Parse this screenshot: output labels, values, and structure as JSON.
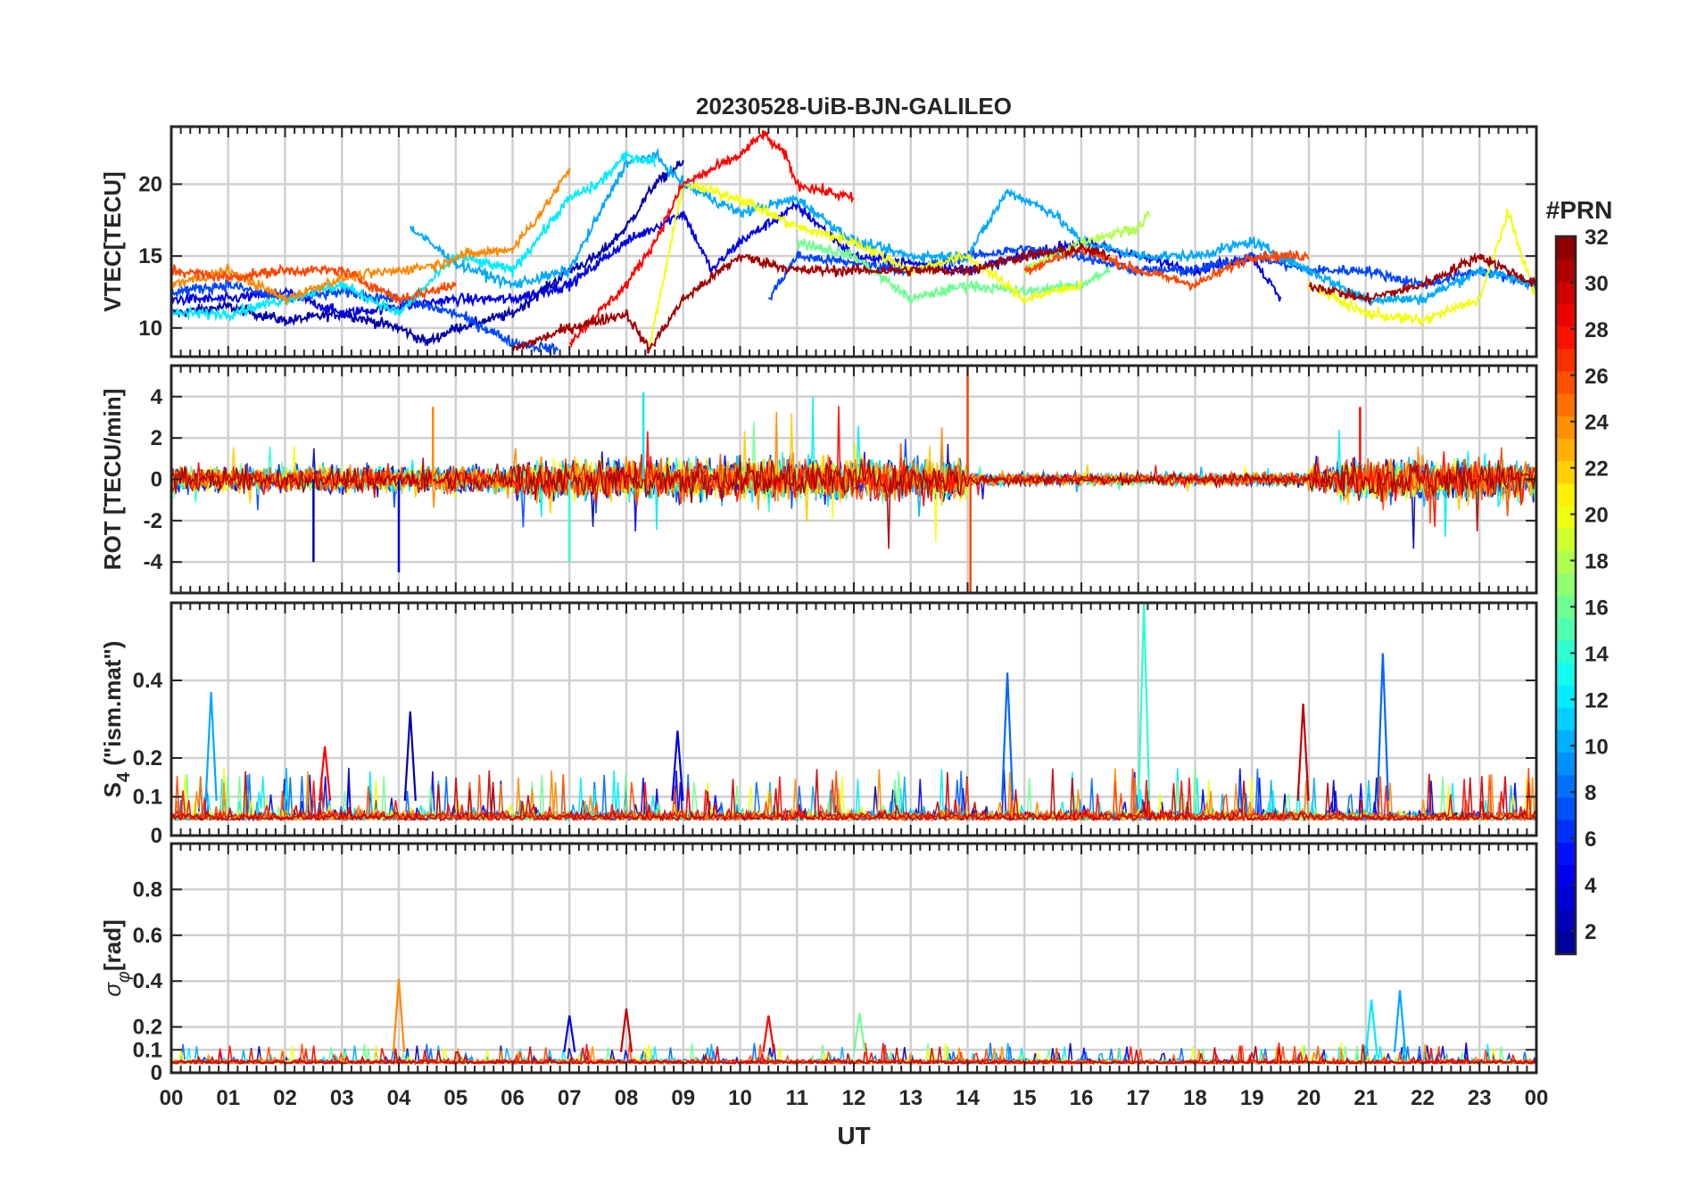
{
  "chart_data": {
    "type": "line",
    "title": "20230528-UiB-BJN-GALILEO",
    "xlabel": "UT",
    "x_ticks": [
      "00",
      "01",
      "02",
      "03",
      "04",
      "05",
      "06",
      "07",
      "08",
      "09",
      "10",
      "11",
      "12",
      "13",
      "14",
      "15",
      "16",
      "17",
      "18",
      "19",
      "20",
      "21",
      "22",
      "23",
      "00"
    ],
    "xlim_hours": [
      0,
      24
    ],
    "grid": true,
    "colorbar": {
      "title": "#PRN",
      "range": [
        1,
        32
      ],
      "ticks": [
        "2",
        "4",
        "6",
        "8",
        "10",
        "12",
        "14",
        "16",
        "18",
        "20",
        "22",
        "24",
        "26",
        "28",
        "30",
        "32"
      ],
      "colormap": [
        "#00008f",
        "#0000ff",
        "#0080ff",
        "#00ffff",
        "#80ff80",
        "#ffff00",
        "#ff8000",
        "#ff0000",
        "#800000"
      ]
    },
    "panels": [
      {
        "id": "vtec",
        "ylabel": "VTEC[TECU]",
        "ylim": [
          8,
          24
        ],
        "yticks": [
          10,
          15,
          20
        ],
        "ytick_labels": [
          "10",
          "15",
          "20"
        ],
        "series": [
          {
            "prn": 2,
            "points": [
              [
                0,
                11
              ],
              [
                1,
                11.5
              ],
              [
                2,
                10.5
              ],
              [
                3,
                11
              ],
              [
                4,
                10
              ],
              [
                4.5,
                9
              ],
              [
                5,
                10
              ],
              [
                6,
                11
              ],
              [
                7,
                14
              ],
              [
                7.5,
                15
              ],
              [
                8,
                17
              ],
              [
                8.5,
                20
              ],
              [
                9,
                21.5
              ]
            ]
          },
          {
            "prn": 4,
            "points": [
              [
                0,
                12
              ],
              [
                1,
                12
              ],
              [
                2,
                12.5
              ],
              [
                3,
                11
              ],
              [
                4,
                11.5
              ],
              [
                5,
                12
              ],
              [
                6,
                12
              ],
              [
                7,
                13
              ],
              [
                8,
                16
              ],
              [
                9,
                18
              ],
              [
                9.5,
                14
              ],
              [
                10,
                16
              ],
              [
                11,
                18.5
              ],
              [
                12,
                15
              ],
              [
                13,
                14.5
              ],
              [
                14,
                14
              ],
              [
                15,
                15
              ],
              [
                16,
                16
              ],
              [
                17,
                15
              ],
              [
                18,
                14
              ],
              [
                19,
                15
              ],
              [
                19.5,
                12
              ]
            ]
          },
          {
            "prn": 7,
            "points": [
              [
                0,
                12.5
              ],
              [
                1,
                13
              ],
              [
                2,
                12
              ],
              [
                3,
                12.5
              ],
              [
                4,
                12
              ],
              [
                5,
                11
              ],
              [
                6,
                9
              ],
              [
                6.8,
                8.5
              ],
              [
                10.5,
                12
              ],
              [
                11,
                15
              ],
              [
                12,
                14.5
              ],
              [
                13,
                14
              ],
              [
                14,
                15
              ],
              [
                15,
                15.5
              ],
              [
                16,
                15
              ],
              [
                17,
                14
              ],
              [
                18,
                14
              ],
              [
                19,
                15
              ],
              [
                20,
                14
              ],
              [
                21,
                14
              ],
              [
                22,
                13
              ],
              [
                23,
                14
              ],
              [
                24,
                13
              ]
            ]
          },
          {
            "prn": 10,
            "points": [
              [
                4.2,
                17
              ],
              [
                5,
                14.5
              ],
              [
                6,
                13
              ],
              [
                7,
                14
              ],
              [
                8,
                21.5
              ],
              [
                8.5,
                22
              ],
              [
                9,
                20
              ],
              [
                10,
                18
              ],
              [
                11,
                19
              ],
              [
                12,
                16
              ],
              [
                13,
                15
              ],
              [
                14,
                15
              ],
              [
                14.7,
                19.5
              ],
              [
                15.5,
                18
              ],
              [
                16,
                16
              ],
              [
                17,
                15
              ],
              [
                18,
                15
              ],
              [
                19,
                16
              ],
              [
                20,
                14
              ],
              [
                21,
                12
              ],
              [
                22,
                12
              ],
              [
                23,
                14
              ],
              [
                24,
                13
              ]
            ]
          },
          {
            "prn": 12,
            "points": [
              [
                0,
                11
              ],
              [
                1,
                11
              ],
              [
                2,
                12
              ],
              [
                3,
                13
              ],
              [
                4,
                11
              ],
              [
                5,
                15
              ],
              [
                6,
                14
              ],
              [
                7,
                19
              ],
              [
                7.5,
                20
              ],
              [
                8,
                22
              ],
              [
                8.5,
                21.5
              ]
            ]
          },
          {
            "prn": 16,
            "points": [
              [
                11,
                16
              ],
              [
                12,
                15
              ],
              [
                13,
                12
              ],
              [
                14,
                13
              ],
              [
                15,
                12.5
              ],
              [
                16,
                13
              ],
              [
                16.5,
                14
              ]
            ]
          },
          {
            "prn": 18,
            "points": [
              [
                15,
                14
              ],
              [
                16,
                16
              ],
              [
                17,
                17
              ],
              [
                17.2,
                18
              ]
            ]
          },
          {
            "prn": 20,
            "points": [
              [
                8.4,
                8.5
              ],
              [
                9,
                20
              ],
              [
                10,
                19
              ],
              [
                11,
                17
              ],
              [
                12,
                16
              ],
              [
                13,
                14
              ],
              [
                14,
                15
              ],
              [
                15,
                12
              ],
              [
                16,
                13
              ],
              [
                20,
                13
              ],
              [
                21,
                11
              ],
              [
                22,
                10.5
              ],
              [
                23,
                12
              ],
              [
                23.5,
                18
              ],
              [
                24,
                12
              ]
            ]
          },
          {
            "prn": 24,
            "points": [
              [
                0,
                13
              ],
              [
                1,
                14
              ],
              [
                2,
                12
              ],
              [
                3,
                13.5
              ],
              [
                4,
                14
              ],
              [
                4.8,
                14.5
              ],
              [
                5,
                15
              ],
              [
                6,
                15.5
              ],
              [
                6.5,
                18
              ],
              [
                7,
                21
              ]
            ]
          },
          {
            "prn": 26,
            "points": [
              [
                0,
                14
              ],
              [
                1,
                13.5
              ],
              [
                2,
                14
              ],
              [
                3,
                14
              ],
              [
                4,
                12
              ],
              [
                5,
                13
              ],
              [
                15,
                14
              ],
              [
                16,
                15.5
              ],
              [
                17,
                14
              ],
              [
                18,
                13
              ],
              [
                19,
                15
              ],
              [
                20,
                15
              ]
            ]
          },
          {
            "prn": 28,
            "points": [
              [
                7,
                9
              ],
              [
                7.5,
                11
              ],
              [
                8,
                13
              ],
              [
                8.5,
                16
              ],
              [
                9,
                20
              ],
              [
                9.5,
                21
              ],
              [
                10,
                22
              ],
              [
                10.4,
                23.5
              ],
              [
                10.8,
                22
              ],
              [
                11,
                20
              ],
              [
                12,
                19
              ]
            ]
          },
          {
            "prn": 31,
            "points": [
              [
                6,
                8.5
              ],
              [
                7,
                10
              ],
              [
                8,
                11
              ],
              [
                8.4,
                8.5
              ],
              [
                9,
                12
              ],
              [
                10,
                15
              ],
              [
                11,
                14
              ],
              [
                14,
                14
              ],
              [
                15,
                15
              ],
              [
                16,
                15.5
              ],
              [
                16.5,
                15
              ],
              [
                20,
                13
              ],
              [
                21,
                12
              ],
              [
                22,
                13
              ],
              [
                23,
                15
              ],
              [
                23.5,
                14
              ],
              [
                24,
                13
              ]
            ]
          }
        ]
      },
      {
        "id": "rot",
        "ylabel": "ROT [TECU/min]",
        "ylim": [
          -5.5,
          5.5
        ],
        "yticks": [
          -4,
          -2,
          0,
          2,
          4
        ],
        "ytick_labels": [
          "-4",
          "-2",
          "0",
          "2",
          "4"
        ],
        "spikes": [
          {
            "prn": 4,
            "hour": 4.0,
            "value": -4.5
          },
          {
            "prn": 12,
            "hour": 8.3,
            "value": 4.2
          },
          {
            "prn": 14,
            "hour": 7.0,
            "value": -4.0
          },
          {
            "prn": 2,
            "hour": 2.5,
            "value": -4.0
          },
          {
            "prn": 26,
            "hour": 14.0,
            "value": 5.5
          },
          {
            "prn": 26,
            "hour": 14.05,
            "value": -5.5
          },
          {
            "prn": 28,
            "hour": 20.9,
            "value": 3.5
          },
          {
            "prn": 24,
            "hour": 4.6,
            "value": 3.5
          }
        ]
      },
      {
        "id": "s4",
        "ylabel_main": "S",
        "ylabel_sub": "4",
        "ylabel_rest": " (\"ism.mat\")",
        "ylim": [
          0,
          0.6
        ],
        "yticks": [
          0,
          0.1,
          0.2,
          0.4
        ],
        "ytick_labels": [
          "0",
          "0.1",
          "0.2",
          "0.4"
        ],
        "peaks": [
          {
            "prn": 10,
            "hour": 0.7,
            "value": 0.37
          },
          {
            "prn": 2,
            "hour": 4.2,
            "value": 0.32
          },
          {
            "prn": 8,
            "hour": 14.7,
            "value": 0.42
          },
          {
            "prn": 14,
            "hour": 17.1,
            "value": 0.6
          },
          {
            "prn": 8,
            "hour": 21.3,
            "value": 0.47
          },
          {
            "prn": 30,
            "hour": 19.9,
            "value": 0.34
          },
          {
            "prn": 4,
            "hour": 8.9,
            "value": 0.27
          },
          {
            "prn": 28,
            "hour": 2.7,
            "value": 0.23
          }
        ]
      },
      {
        "id": "sigma",
        "ylabel_main": "σ",
        "ylabel_sub": "φ",
        "ylabel_rest": "[rad]",
        "ylim": [
          0,
          1
        ],
        "yticks": [
          0,
          0.1,
          0.2,
          0.4,
          0.6,
          0.8
        ],
        "ytick_labels": [
          "0",
          "0.1",
          "0.2",
          "0.4",
          "0.6",
          "0.8"
        ],
        "peaks": [
          {
            "prn": 24,
            "hour": 4.0,
            "value": 0.41
          },
          {
            "prn": 10,
            "hour": 21.6,
            "value": 0.36
          },
          {
            "prn": 12,
            "hour": 21.1,
            "value": 0.32
          },
          {
            "prn": 30,
            "hour": 8.0,
            "value": 0.28
          },
          {
            "prn": 4,
            "hour": 7.0,
            "value": 0.25
          },
          {
            "prn": 28,
            "hour": 10.5,
            "value": 0.25
          },
          {
            "prn": 16,
            "hour": 12.1,
            "value": 0.26
          }
        ]
      }
    ]
  }
}
